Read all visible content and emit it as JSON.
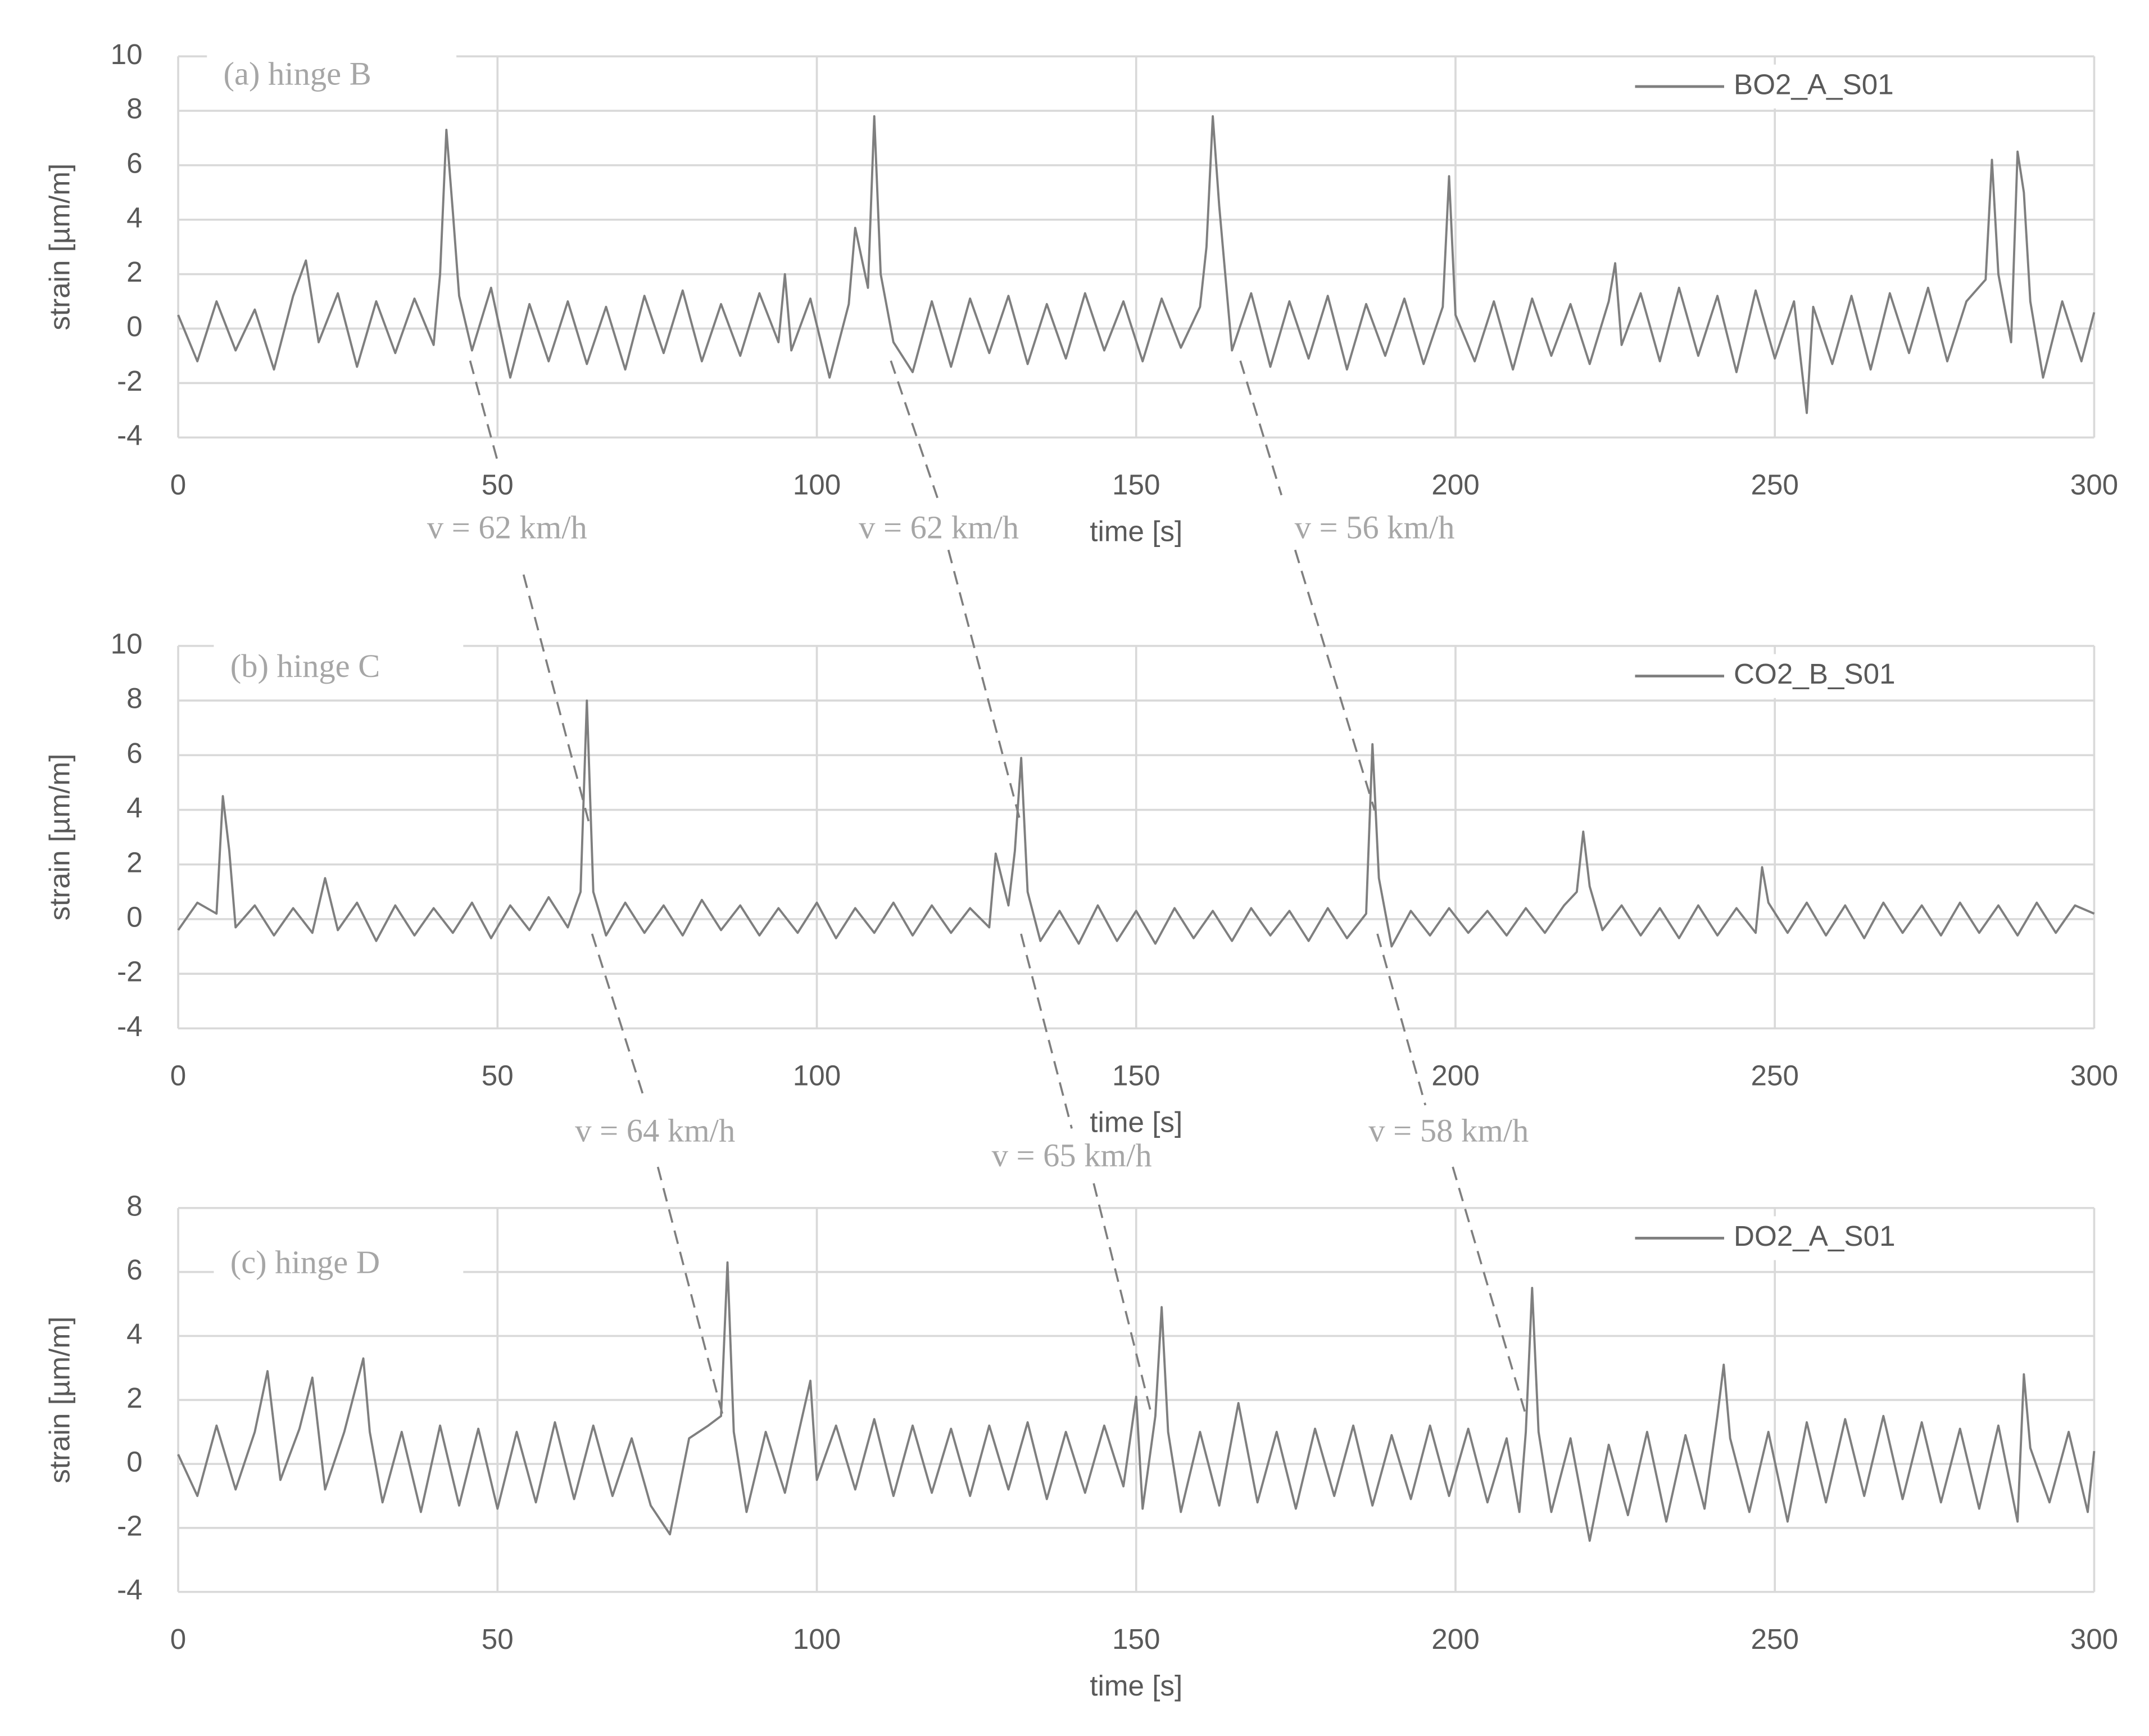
{
  "chart_data": [
    {
      "type": "line",
      "panel_label": "(a) hinge B",
      "xlabel": "time [s]",
      "ylabel": "strain [µm/m]",
      "xlim": [
        0,
        300
      ],
      "xticks": [
        0,
        50,
        100,
        150,
        200,
        250,
        300
      ],
      "ylim": [
        -4,
        10
      ],
      "yticks": [
        -4,
        -2,
        0,
        2,
        4,
        6,
        8,
        10
      ],
      "grid": true,
      "x": [
        0,
        3,
        6,
        9,
        12,
        15,
        18,
        20,
        22,
        25,
        28,
        31,
        34,
        37,
        40,
        41,
        42,
        43,
        44,
        46,
        49,
        52,
        55,
        58,
        61,
        64,
        67,
        70,
        73,
        76,
        79,
        82,
        85,
        88,
        91,
        94,
        95,
        96,
        99,
        102,
        105,
        106,
        108,
        109,
        110,
        112,
        115,
        118,
        121,
        124,
        127,
        130,
        133,
        136,
        139,
        142,
        145,
        148,
        151,
        154,
        157,
        160,
        161,
        162,
        163,
        165,
        168,
        171,
        174,
        177,
        180,
        183,
        186,
        189,
        192,
        195,
        198,
        199,
        200,
        203,
        206,
        209,
        212,
        215,
        218,
        221,
        224,
        225,
        226,
        229,
        232,
        235,
        238,
        241,
        244,
        247,
        250,
        253,
        255,
        256,
        259,
        262,
        265,
        268,
        271,
        274,
        277,
        280,
        283,
        284,
        285,
        287,
        288,
        289,
        290,
        292,
        295,
        298,
        300
      ],
      "series": [
        {
          "name": "BO2_A_S01",
          "color": "#7f7f7f",
          "values": [
            0.5,
            -1.2,
            1.0,
            -0.8,
            0.7,
            -1.5,
            1.2,
            2.5,
            -0.5,
            1.3,
            -1.4,
            1.0,
            -0.9,
            1.1,
            -0.6,
            2.0,
            7.3,
            4.3,
            1.2,
            -0.8,
            1.5,
            -1.8,
            0.9,
            -1.2,
            1.0,
            -1.3,
            0.8,
            -1.5,
            1.2,
            -0.9,
            1.4,
            -1.2,
            0.9,
            -1.0,
            1.3,
            -0.5,
            2.0,
            -0.8,
            1.1,
            -1.8,
            0.9,
            3.7,
            1.5,
            7.8,
            2.0,
            -0.5,
            -1.6,
            1.0,
            -1.4,
            1.1,
            -0.9,
            1.2,
            -1.3,
            0.9,
            -1.1,
            1.3,
            -0.8,
            1.0,
            -1.2,
            1.1,
            -0.7,
            0.8,
            3.0,
            7.8,
            4.5,
            -0.8,
            1.3,
            -1.4,
            1.0,
            -1.1,
            1.2,
            -1.5,
            0.9,
            -1.0,
            1.1,
            -1.3,
            0.8,
            5.6,
            0.5,
            -1.2,
            1.0,
            -1.5,
            1.1,
            -1.0,
            0.9,
            -1.3,
            1.0,
            2.4,
            -0.6,
            1.3,
            -1.2,
            1.5,
            -1.0,
            1.2,
            -1.6,
            1.4,
            -1.1,
            1.0,
            -3.1,
            0.8,
            -1.3,
            1.2,
            -1.5,
            1.3,
            -0.9,
            1.5,
            -1.2,
            1.0,
            1.8,
            6.2,
            2.0,
            -0.5,
            6.5,
            5.0,
            1.0,
            -1.8,
            1.0,
            -1.2,
            0.6
          ]
        }
      ]
    },
    {
      "type": "line",
      "panel_label": "(b) hinge C",
      "xlabel": "time [s]",
      "ylabel": "strain [µm/m]",
      "xlim": [
        0,
        300
      ],
      "xticks": [
        0,
        50,
        100,
        150,
        200,
        250,
        300
      ],
      "ylim": [
        -4,
        10
      ],
      "yticks": [
        -4,
        -2,
        0,
        2,
        4,
        6,
        8,
        10
      ],
      "grid": true,
      "x": [
        0,
        3,
        6,
        7,
        8,
        9,
        12,
        15,
        18,
        21,
        23,
        25,
        28,
        31,
        34,
        37,
        40,
        43,
        46,
        49,
        52,
        55,
        58,
        61,
        63,
        64,
        65,
        67,
        70,
        73,
        76,
        79,
        82,
        85,
        88,
        91,
        94,
        97,
        100,
        103,
        106,
        109,
        112,
        115,
        118,
        121,
        124,
        127,
        128,
        130,
        131,
        132,
        133,
        135,
        138,
        141,
        144,
        147,
        150,
        153,
        156,
        159,
        162,
        165,
        168,
        171,
        174,
        177,
        180,
        183,
        186,
        187,
        188,
        190,
        193,
        196,
        199,
        202,
        205,
        208,
        211,
        214,
        217,
        219,
        220,
        221,
        223,
        226,
        229,
        232,
        235,
        238,
        241,
        244,
        247,
        248,
        249,
        252,
        255,
        258,
        261,
        264,
        267,
        270,
        273,
        276,
        279,
        282,
        285,
        288,
        291,
        294,
        297,
        300
      ],
      "series": [
        {
          "name": "CO2_B_S01",
          "color": "#7f7f7f",
          "values": [
            -0.4,
            0.6,
            0.2,
            4.5,
            2.5,
            -0.3,
            0.5,
            -0.6,
            0.4,
            -0.5,
            1.5,
            -0.4,
            0.6,
            -0.8,
            0.5,
            -0.6,
            0.4,
            -0.5,
            0.6,
            -0.7,
            0.5,
            -0.4,
            0.8,
            -0.3,
            1.0,
            8.0,
            1.0,
            -0.6,
            0.6,
            -0.5,
            0.5,
            -0.6,
            0.7,
            -0.4,
            0.5,
            -0.6,
            0.4,
            -0.5,
            0.6,
            -0.7,
            0.4,
            -0.5,
            0.6,
            -0.6,
            0.5,
            -0.5,
            0.4,
            -0.3,
            2.4,
            0.5,
            2.5,
            5.9,
            1.0,
            -0.8,
            0.3,
            -0.9,
            0.5,
            -0.8,
            0.3,
            -0.9,
            0.4,
            -0.7,
            0.3,
            -0.8,
            0.4,
            -0.6,
            0.3,
            -0.8,
            0.4,
            -0.7,
            0.2,
            6.4,
            1.5,
            -1.0,
            0.3,
            -0.6,
            0.4,
            -0.5,
            0.3,
            -0.6,
            0.4,
            -0.5,
            0.5,
            1.0,
            3.2,
            1.2,
            -0.4,
            0.5,
            -0.6,
            0.4,
            -0.7,
            0.5,
            -0.6,
            0.4,
            -0.5,
            1.9,
            0.6,
            -0.5,
            0.6,
            -0.6,
            0.5,
            -0.7,
            0.6,
            -0.5,
            0.5,
            -0.6,
            0.6,
            -0.5,
            0.5,
            -0.6,
            0.6,
            -0.5,
            0.5,
            0.2
          ]
        }
      ]
    },
    {
      "type": "line",
      "panel_label": "(c) hinge D",
      "xlabel": "time [s]",
      "ylabel": "strain [µm/m]",
      "xlim": [
        0,
        300
      ],
      "xticks": [
        0,
        50,
        100,
        150,
        200,
        250,
        300
      ],
      "ylim": [
        -4,
        8
      ],
      "yticks": [
        -4,
        -2,
        0,
        2,
        4,
        6,
        8
      ],
      "grid": true,
      "x": [
        0,
        3,
        6,
        9,
        12,
        14,
        16,
        19,
        21,
        23,
        26,
        29,
        30,
        32,
        35,
        38,
        41,
        44,
        47,
        50,
        53,
        56,
        59,
        62,
        65,
        68,
        71,
        74,
        77,
        80,
        83,
        85,
        86,
        87,
        89,
        92,
        95,
        99,
        100,
        103,
        106,
        109,
        112,
        115,
        118,
        121,
        124,
        127,
        130,
        133,
        136,
        139,
        142,
        145,
        148,
        150,
        151,
        153,
        154,
        155,
        157,
        160,
        163,
        166,
        169,
        172,
        175,
        178,
        181,
        184,
        187,
        190,
        193,
        196,
        199,
        202,
        205,
        208,
        210,
        211,
        212,
        213,
        215,
        218,
        221,
        224,
        227,
        230,
        233,
        236,
        239,
        241,
        242,
        243,
        246,
        249,
        252,
        255,
        258,
        261,
        264,
        267,
        270,
        273,
        276,
        279,
        282,
        285,
        288,
        289,
        290,
        293,
        296,
        299,
        300
      ],
      "series": [
        {
          "name": "DO2_A_S01",
          "color": "#7f7f7f",
          "values": [
            0.3,
            -1.0,
            1.2,
            -0.8,
            1.0,
            2.9,
            -0.5,
            1.1,
            2.7,
            -0.8,
            1.0,
            3.3,
            1.0,
            -1.2,
            1.0,
            -1.5,
            1.2,
            -1.3,
            1.1,
            -1.4,
            1.0,
            -1.2,
            1.3,
            -1.1,
            1.2,
            -1.0,
            0.8,
            -1.3,
            -2.2,
            0.8,
            1.2,
            1.5,
            6.3,
            1.0,
            -1.5,
            1.0,
            -0.9,
            2.6,
            -0.5,
            1.2,
            -0.8,
            1.4,
            -1.0,
            1.2,
            -0.9,
            1.1,
            -1.0,
            1.2,
            -0.8,
            1.3,
            -1.1,
            1.0,
            -0.9,
            1.2,
            -0.7,
            2.1,
            -1.4,
            1.5,
            4.9,
            1.0,
            -1.5,
            1.0,
            -1.3,
            1.9,
            -1.2,
            1.0,
            -1.4,
            1.1,
            -1.0,
            1.2,
            -1.3,
            0.9,
            -1.1,
            1.2,
            -1.0,
            1.1,
            -1.2,
            0.8,
            -1.5,
            1.0,
            5.5,
            1.0,
            -1.5,
            0.8,
            -2.4,
            0.6,
            -1.6,
            1.0,
            -1.8,
            0.9,
            -1.4,
            1.5,
            3.1,
            0.8,
            -1.5,
            1.0,
            -1.8,
            1.3,
            -1.2,
            1.4,
            -1.0,
            1.5,
            -1.1,
            1.3,
            -1.2,
            1.1,
            -1.4,
            1.2,
            -1.8,
            2.8,
            0.5,
            -1.2,
            1.0,
            -1.5,
            0.4
          ]
        }
      ]
    }
  ],
  "speed_labels": [
    "v = 62 km/h",
    "v = 62 km/h",
    "v = 56 km/h",
    "v = 64 km/h",
    "v = 65 km/h",
    "v = 58 km/h"
  ]
}
